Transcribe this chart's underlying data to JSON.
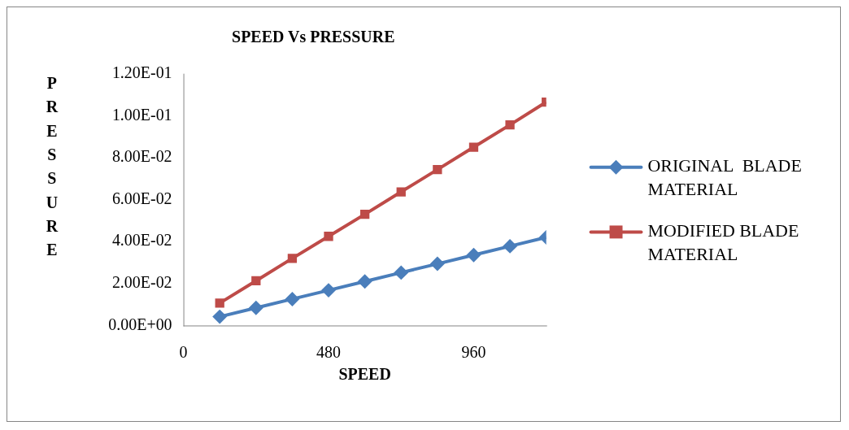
{
  "chart_data": {
    "type": "line",
    "title": "SPEED Vs PRESSURE",
    "xlabel": "SPEED",
    "ylabel": "PRESSURE",
    "x": [
      120,
      240,
      360,
      480,
      600,
      720,
      840,
      960,
      1080,
      1200
    ],
    "series": [
      {
        "name": "ORIGINAL  BLADE MATERIAL",
        "color": "#4a7ebb",
        "marker": "diamond",
        "values": [
          0.0042,
          0.0084,
          0.0126,
          0.0168,
          0.021,
          0.0252,
          0.0294,
          0.0336,
          0.0378,
          0.042
        ]
      },
      {
        "name": "MODIFIED BLADE MATERIAL",
        "color": "#be4b48",
        "marker": "square",
        "values": [
          0.0107,
          0.0213,
          0.032,
          0.0425,
          0.053,
          0.0637,
          0.0743,
          0.085,
          0.0956,
          0.1065
        ]
      }
    ],
    "xlim": [
      0,
      1200
    ],
    "xticks": [
      0,
      480,
      960
    ],
    "ylim": [
      0,
      0.12
    ],
    "yticks": [
      {
        "value": 0,
        "label": "0.00E+00"
      },
      {
        "value": 0.02,
        "label": "2.00E-02"
      },
      {
        "value": 0.04,
        "label": "4.00E-02"
      },
      {
        "value": 0.06,
        "label": "6.00E-02"
      },
      {
        "value": 0.08,
        "label": "8.00E-02"
      },
      {
        "value": 0.1,
        "label": "1.00E-01"
      },
      {
        "value": 0.12,
        "label": "1.20E-01"
      }
    ],
    "grid": false,
    "legend": "right",
    "line_style": "solid"
  }
}
